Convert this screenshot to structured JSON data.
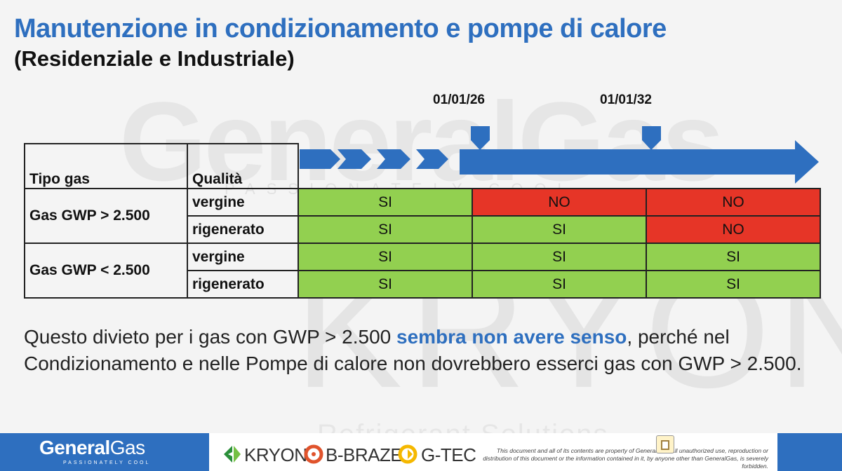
{
  "watermark": {
    "brand": "GeneralGas",
    "tagline": "PASSIONATELY COOL",
    "product": "KRYON",
    "product_sub": "Refrigerant Solutions"
  },
  "header": {
    "title": "Manutenzione in condizionamento e pompe di calore",
    "subtitle": "(Residenziale e Industriale)"
  },
  "timeline": {
    "dates": [
      "01/01/26",
      "01/01/32"
    ]
  },
  "table": {
    "col_tipo": "Tipo gas",
    "col_qualita": "Qualità",
    "groups": [
      {
        "tipo": "Gas GWP > 2.500",
        "rows": [
          {
            "qualita": "vergine",
            "cells": [
              "SI",
              "NO",
              "NO"
            ]
          },
          {
            "qualita": "rigenerato",
            "cells": [
              "SI",
              "SI",
              "NO"
            ]
          }
        ]
      },
      {
        "tipo": "Gas GWP < 2.500",
        "rows": [
          {
            "qualita": "vergine",
            "cells": [
              "SI",
              "SI",
              "SI"
            ]
          },
          {
            "qualita": "rigenerato",
            "cells": [
              "SI",
              "SI",
              "SI"
            ]
          }
        ]
      }
    ],
    "colors": {
      "SI": "#92d050",
      "NO": "#e63527"
    }
  },
  "paragraph": {
    "before": "Questo divieto per i gas con GWP > 2.500 ",
    "highlight": "sembra non avere senso",
    "after": ", perché nel Condizionamento e nelle Pompe di calore non dovrebbero esserci gas con GWP > 2.500."
  },
  "footer": {
    "logo_bold": "General",
    "logo_thin": "Gas",
    "logo_tagline": "PASSIONATELY COOL",
    "brands": [
      "KRYON",
      "B-BRAZE",
      "G-TEC"
    ],
    "legal": "This document and all of its contents are property of GeneralGas. All unauthorized use, reproduction or distribution of this document or the information contained in it, by anyone other than GeneralGas, is severely forbidden."
  },
  "accent_color": "#2e6fbf"
}
